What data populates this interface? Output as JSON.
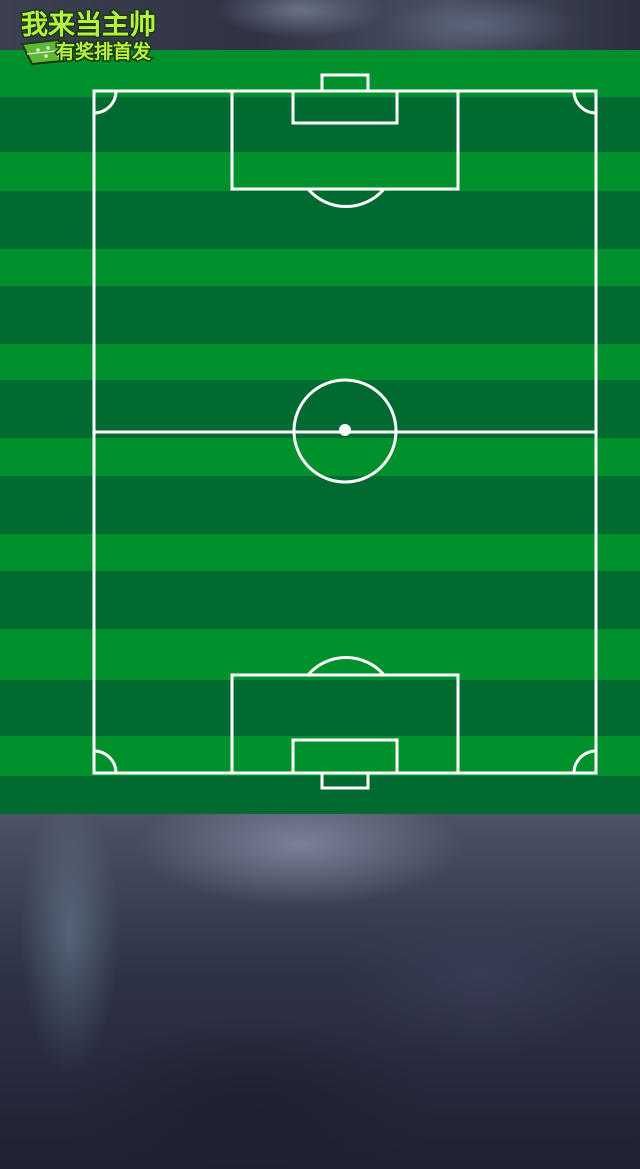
{
  "logo": {
    "title": "我来当主帅",
    "subtitle": "有奖排首发"
  },
  "colors": {
    "grass_light": "#00912c",
    "grass_dark": "#006a30",
    "line": "#ffffff",
    "logo_text": "#b8f040",
    "logo_outline": "#1a3a10"
  }
}
